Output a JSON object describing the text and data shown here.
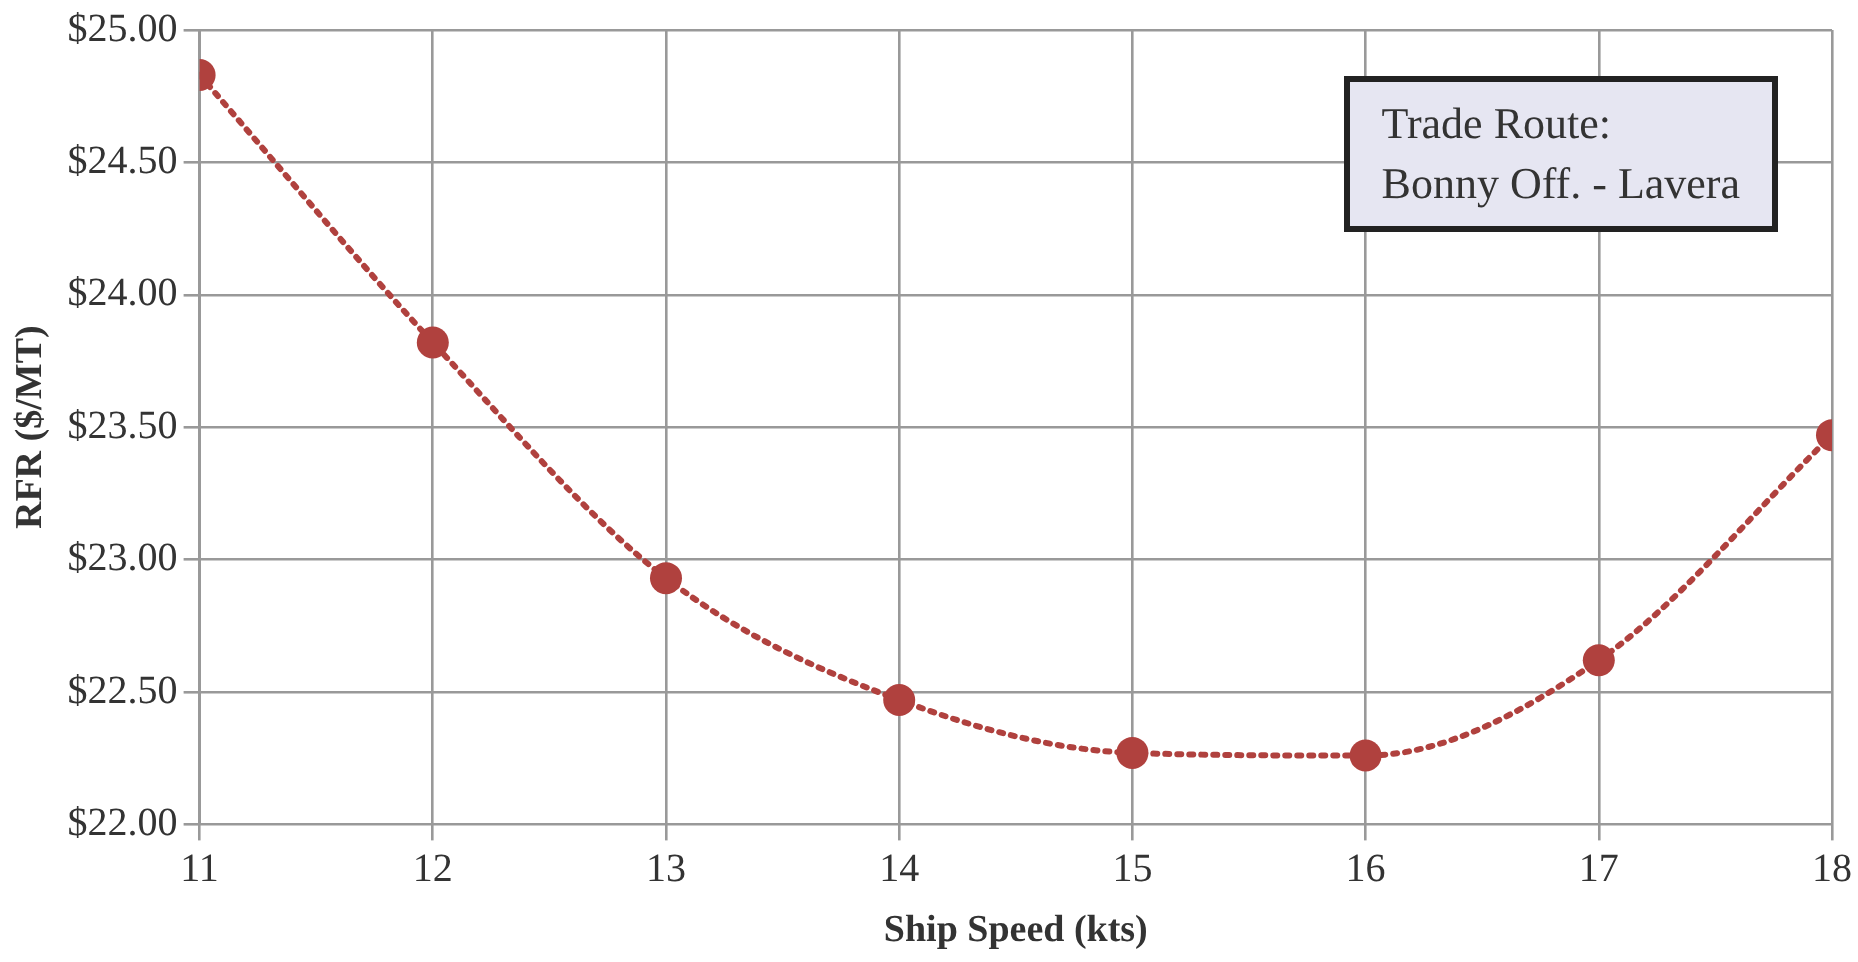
{
  "chart_data": {
    "type": "line",
    "xlabel": "Ship Speed (kts)",
    "ylabel": "RFR ($/MT)",
    "x": [
      11,
      12,
      13,
      14,
      15,
      16,
      17,
      18
    ],
    "series": [
      {
        "color": "#b0413e",
        "values": [
          24.83,
          23.82,
          22.93,
          22.47,
          22.27,
          22.26,
          22.62,
          23.47
        ]
      }
    ],
    "xlim": [
      11,
      18
    ],
    "xticks": [
      11,
      12,
      13,
      14,
      15,
      16,
      17,
      18
    ],
    "ylim": [
      22,
      25
    ],
    "yticks": [
      {
        "value": 22,
        "label": "$22.00"
      },
      {
        "value": 22.5,
        "label": "$22.50"
      },
      {
        "value": 23,
        "label": "$23.00"
      },
      {
        "value": 23.5,
        "label": "$23.50"
      },
      {
        "value": 24,
        "label": "$24.00"
      },
      {
        "value": 24.5,
        "label": "$24.50"
      },
      {
        "value": 25,
        "label": "$25.00"
      }
    ],
    "grid": true,
    "marker": "circle",
    "line_style": "dotted",
    "annotations": [
      "Trade Route:",
      "Bonny Off. - Lavera"
    ]
  }
}
